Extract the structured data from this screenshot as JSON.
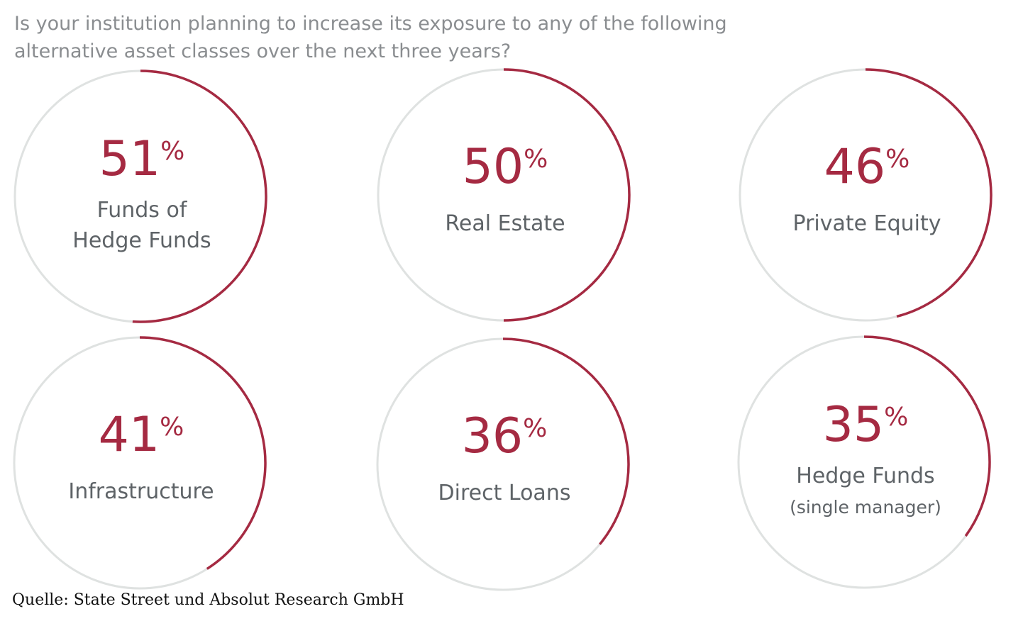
{
  "chart_data": {
    "type": "gauge",
    "title": [
      "Is your institution planning to increase its exposure to any of the following",
      "alternative asset classes over the next three years?"
    ],
    "unit": "%",
    "ylim": [
      0,
      100
    ],
    "items": [
      {
        "label": [
          "Funds of",
          "Hedge Funds"
        ],
        "value": 51
      },
      {
        "label": [
          "Real Estate"
        ],
        "value": 50
      },
      {
        "label": [
          "Private Equity"
        ],
        "value": 46
      },
      {
        "label": [
          "Infrastructure"
        ],
        "value": 41
      },
      {
        "label": [
          "Direct Loans"
        ],
        "value": 36
      },
      {
        "label": [
          "Hedge Funds",
          "(single manager)"
        ],
        "value": 35
      }
    ],
    "colors": {
      "arc": "#a52a42",
      "track": "#dfe2e1",
      "label": "#5e6367",
      "title": "#8a8d90"
    }
  },
  "source": "Quelle: State Street und Absolut Research GmbH"
}
